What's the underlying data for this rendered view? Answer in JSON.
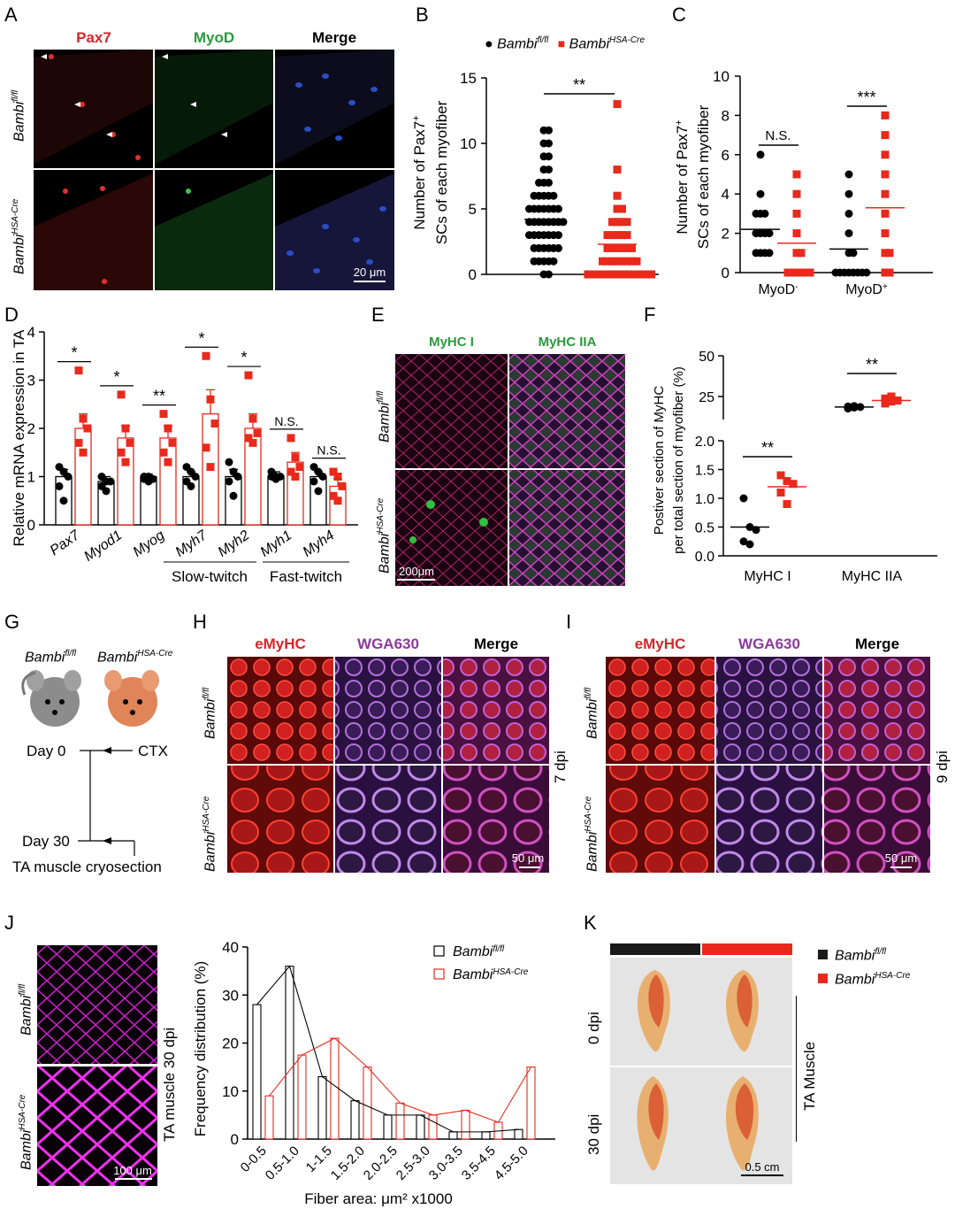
{
  "panels": [
    "A",
    "B",
    "C",
    "D",
    "E",
    "F",
    "G",
    "H",
    "I",
    "J",
    "K"
  ],
  "genotypes": {
    "fl": "Bambi",
    "fl_sup": "fl/fl",
    "cre": "Bambi",
    "cre_sup": "HSA-Cre"
  },
  "colors": {
    "fl": "#000000",
    "cre": "#e8291c",
    "pax7": "#d9242a",
    "myod": "#2a9a3b",
    "purple": "#8a3a9c"
  },
  "A": {
    "ch": [
      "Pax7",
      "MyoD",
      "Merge"
    ],
    "scale": "20 μm"
  },
  "B": {
    "ylabel1": "Number of Pax7",
    "ylabel_sup": "+",
    "ylabel2": "SCs of each myofiber",
    "sig": "**",
    "yticks": [
      "0",
      "5",
      "10",
      "15"
    ]
  },
  "C": {
    "ylabel1": "Number of Pax7",
    "ylabel_sup": "+",
    "ylabel2": "SCs of each myofiber",
    "sig": [
      "N.S.",
      "***"
    ],
    "yticks": [
      "0",
      "2",
      "4",
      "6",
      "8",
      "10"
    ],
    "cats": [
      "MyoD",
      "MyoD"
    ],
    "cats_sup": [
      "-",
      "+"
    ]
  },
  "D": {
    "ylabel": "Relative mRNA expression in TA",
    "genes": [
      "Pax7",
      "Myod1",
      "Myog",
      "Myh7",
      "Myh2",
      "Myh1",
      "Myh4"
    ],
    "sig": [
      "*",
      "*",
      "**",
      "*",
      "*",
      "N.S.",
      "N.S."
    ],
    "groups": [
      "Slow-twitch",
      "Fast-twitch"
    ],
    "yticks": [
      "0",
      "1",
      "2",
      "3",
      "4"
    ]
  },
  "E": {
    "ch": [
      "MyHC I",
      "MyHC IIA"
    ],
    "scale": "200μm"
  },
  "F": {
    "ylabel1": "Postiver section of MyHC",
    "ylabel2": "per total section of myofiber (%)",
    "cats": [
      "MyHC I",
      "MyHC IIA"
    ],
    "sig": [
      "**",
      "**"
    ],
    "yticks_low": [
      "0.0",
      "0.5",
      "1.0",
      "1.5",
      "2.0"
    ],
    "yticks_high": [
      "25",
      "50"
    ]
  },
  "G": {
    "day0": "Day 0",
    "ctx": "CTX",
    "day30": "Day 30",
    "section": "TA muscle cryosection"
  },
  "H": {
    "ch": [
      "eMyHC",
      "WGA630",
      "Merge"
    ],
    "time": "7 dpi",
    "scale": "50 μm"
  },
  "I": {
    "ch": [
      "eMyHC",
      "WGA630",
      "Merge"
    ],
    "time": "9 dpi",
    "scale": "50 μm"
  },
  "J": {
    "side": "TA muscle 30 dpi",
    "scale": "100 μm",
    "ylabel": "Frequency distribution (%)",
    "xlabel": "Fiber area: μm² x1000",
    "yticks": [
      "0",
      "10",
      "20",
      "30",
      "40"
    ]
  },
  "K": {
    "rows": [
      "0 dpi",
      "30 dpi"
    ],
    "side": "TA Muscle",
    "scale": "0.5 cm"
  },
  "chart_data": [
    {
      "panel": "B",
      "type": "scatter",
      "categories": [
        "Bambi fl/fl",
        "Bambi HSA-Cre"
      ],
      "series": [
        {
          "name": "Bambi fl/fl",
          "values": [
            0,
            0,
            1,
            1,
            1,
            1,
            1,
            2,
            2,
            2,
            2,
            2,
            2,
            3,
            3,
            3,
            3,
            3,
            3,
            3,
            4,
            4,
            4,
            4,
            4,
            4,
            4,
            4,
            5,
            5,
            5,
            5,
            5,
            5,
            5,
            6,
            6,
            6,
            6,
            6,
            7,
            7,
            7,
            8,
            8,
            9,
            9,
            10,
            10,
            11,
            11
          ],
          "mean": 4.2
        },
        {
          "name": "Bambi HSA-Cre",
          "values": [
            0,
            0,
            0,
            0,
            0,
            0,
            0,
            0,
            0,
            0,
            0,
            0,
            0,
            0,
            1,
            1,
            1,
            1,
            1,
            1,
            1,
            1,
            2,
            2,
            2,
            2,
            2,
            2,
            3,
            3,
            3,
            3,
            3,
            4,
            4,
            4,
            4,
            5,
            5,
            6,
            8,
            13
          ],
          "mean": 2.3
        }
      ],
      "ylim": [
        0,
        15
      ]
    },
    {
      "panel": "C",
      "type": "scatter",
      "categories": [
        "MyoD-",
        "MyoD+"
      ],
      "series": [
        {
          "name": "Bambi fl/fl",
          "MyoD-": [
            1,
            1,
            1,
            1,
            2,
            2,
            2,
            2,
            3,
            3,
            3,
            4,
            6
          ],
          "MyoD+": [
            0,
            0,
            0,
            0,
            0,
            0,
            0,
            0,
            1,
            1,
            2,
            3,
            4,
            5
          ],
          "means": [
            2.2,
            1.2
          ]
        },
        {
          "name": "Bambi HSA-Cre",
          "MyoD-": [
            0,
            0,
            0,
            0,
            0,
            0,
            1,
            1,
            2,
            3,
            4,
            5
          ],
          "MyoD+": [
            0,
            0,
            1,
            1,
            2,
            3,
            4,
            5,
            6,
            7,
            8
          ],
          "means": [
            1.5,
            3.3
          ]
        }
      ],
      "ylim": [
        0,
        10
      ]
    },
    {
      "panel": "D",
      "type": "bar",
      "categories": [
        "Pax7",
        "Myod1",
        "Myog",
        "Myh7",
        "Myh2",
        "Myh1",
        "Myh4"
      ],
      "series": [
        {
          "name": "Bambi fl/fl",
          "values": [
            1.0,
            0.9,
            1.0,
            1.0,
            1.0,
            1.0,
            1.0
          ],
          "err": [
            0.15,
            0.1,
            0.05,
            0.1,
            0.15,
            0.1,
            0.1
          ],
          "points": [
            [
              1.2,
              1.1,
              1.0,
              0.8,
              0.5
            ],
            [
              1.0,
              0.9,
              0.9,
              0.8,
              0.7
            ],
            [
              1.0,
              1.0,
              0.95,
              0.95,
              0.9
            ],
            [
              1.2,
              1.1,
              1.0,
              0.9,
              0.8
            ],
            [
              1.3,
              1.1,
              1.0,
              0.9,
              0.6
            ],
            [
              1.1,
              1.0,
              1.0,
              1.0,
              0.95
            ],
            [
              1.2,
              1.1,
              1.0,
              0.9,
              0.7
            ]
          ]
        },
        {
          "name": "Bambi HSA-Cre",
          "values": [
            2.0,
            1.8,
            1.8,
            2.3,
            2.0,
            1.3,
            0.8
          ],
          "err": [
            0.3,
            0.25,
            0.25,
            0.5,
            0.3,
            0.2,
            0.15
          ],
          "points": [
            [
              3.2,
              2.2,
              2.0,
              1.7,
              1.5
            ],
            [
              2.7,
              2.0,
              1.7,
              1.5,
              1.3
            ],
            [
              2.3,
              2.0,
              1.7,
              1.5,
              1.3
            ],
            [
              3.5,
              2.6,
              2.1,
              1.6,
              1.2
            ],
            [
              3.1,
              2.2,
              1.9,
              1.8,
              1.7
            ],
            [
              1.8,
              1.4,
              1.2,
              1.1,
              1.0
            ],
            [
              1.1,
              1.0,
              0.8,
              0.6,
              0.5
            ]
          ]
        }
      ],
      "ylim": [
        0,
        4
      ]
    },
    {
      "panel": "F",
      "type": "scatter",
      "categories": [
        "MyHC I",
        "MyHC IIA"
      ],
      "series": [
        {
          "name": "Bambi fl/fl",
          "MyHC I": [
            1.0,
            0.5,
            0.45,
            0.25,
            0.2
          ],
          "MyHC IIA": [
            13,
            14,
            14.5,
            15,
            15.5
          ],
          "means": [
            0.5,
            14.5
          ]
        },
        {
          "name": "Bambi HSA-Cre",
          "MyHC I": [
            1.4,
            1.3,
            1.25,
            1.1,
            0.9
          ],
          "MyHC IIA": [
            18,
            20,
            21,
            23,
            25
          ],
          "means": [
            1.2,
            21
          ]
        }
      ],
      "ylim": [
        0,
        50
      ]
    },
    {
      "panel": "J",
      "type": "bar",
      "categories": [
        "0-0.5",
        "0.5-1.0",
        "1-1.5",
        "1.5-2.0",
        "2.0-2.5",
        "2.5-3.0",
        "3.0-3.5",
        "3.5-4.5",
        "4.5-5.0"
      ],
      "series": [
        {
          "name": "Bambi fl/fl",
          "values": [
            28,
            36,
            13,
            8,
            5,
            5,
            1.5,
            1.5,
            2
          ]
        },
        {
          "name": "Bambi HSA-Cre",
          "values": [
            9,
            17.5,
            21,
            15,
            7.5,
            5,
            6,
            3.5,
            15
          ]
        }
      ],
      "ylim": [
        0,
        40
      ]
    }
  ]
}
